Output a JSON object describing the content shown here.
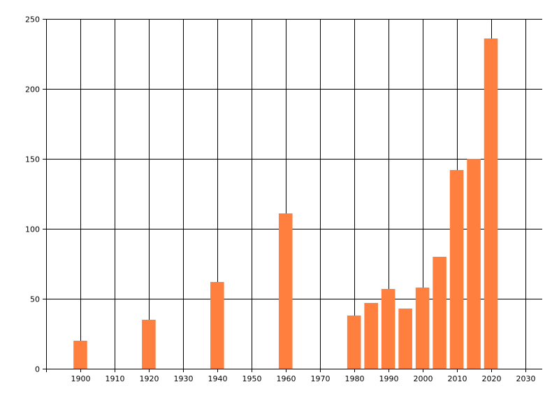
{
  "chart_data": {
    "type": "bar",
    "title": "",
    "xlabel": "",
    "ylabel": "",
    "xlim": [
      1890,
      2035
    ],
    "ylim": [
      0,
      250
    ],
    "x_ticks": [
      1900,
      1910,
      1920,
      1930,
      1940,
      1950,
      1960,
      1970,
      1980,
      1990,
      2000,
      2010,
      2020,
      2030
    ],
    "y_ticks": [
      0,
      50,
      100,
      150,
      200,
      250
    ],
    "x_tick_labels": [
      "1900",
      "1910",
      "1920",
      "1930",
      "1940",
      "1950",
      "1960",
      "1970",
      "1980",
      "1990",
      "2000",
      "2010",
      "2020",
      "2030"
    ],
    "y_tick_labels": [
      "0",
      "50",
      "100",
      "150",
      "200",
      "250"
    ],
    "grid": true,
    "legend": "none",
    "bar_color": "#ff7f3f",
    "x": [
      1900,
      1920,
      1940,
      1960,
      1980,
      1985,
      1990,
      1995,
      2000,
      2005,
      2010,
      2015,
      2020
    ],
    "values": [
      20,
      35,
      62,
      111,
      38,
      47,
      57,
      43,
      58,
      80,
      142,
      150,
      236
    ]
  }
}
